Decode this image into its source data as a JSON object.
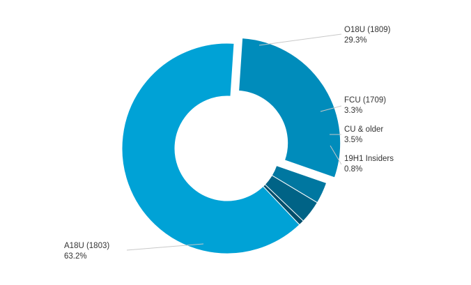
{
  "chart_data": {
    "type": "pie",
    "variant": "donut",
    "slices": [
      {
        "name": "A18U (1803)",
        "value": 63.2,
        "percent_label": "63.2%",
        "color": "#00a2d6",
        "exploded": false
      },
      {
        "name": "O18U (1809)",
        "value": 29.3,
        "percent_label": "29.3%",
        "color": "#008cbb",
        "exploded": true
      },
      {
        "name": "FCU (1709)",
        "value": 3.3,
        "percent_label": "3.3%",
        "color": "#0077a0",
        "exploded": false
      },
      {
        "name": "CU & older",
        "value": 3.5,
        "percent_label": "3.5%",
        "color": "#006386",
        "exploded": false
      },
      {
        "name": "19H1 Insiders",
        "value": 0.8,
        "percent_label": "0.8%",
        "color": "#004f6c",
        "exploded": false
      }
    ],
    "legend": "none",
    "labels": "outside with leader lines"
  }
}
